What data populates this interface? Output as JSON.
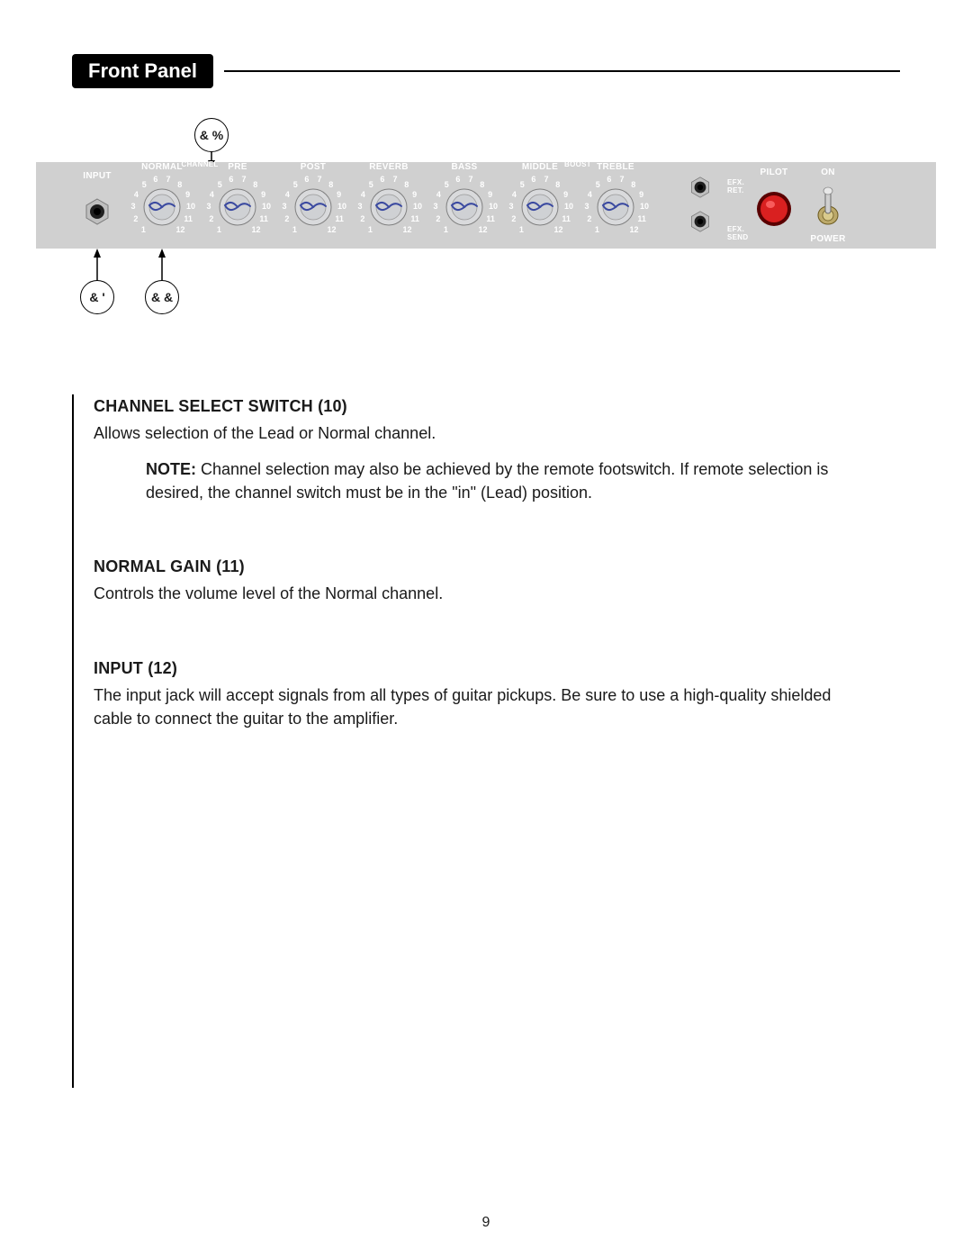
{
  "header": {
    "title": "Front Panel"
  },
  "page_number": "9",
  "callouts": {
    "c10": "& %",
    "c11": "& &",
    "c12": "& '"
  },
  "panel": {
    "input_label": "INPUT",
    "knobs": [
      {
        "label": "NORMAL"
      },
      {
        "label": "PRE"
      },
      {
        "label": "POST"
      },
      {
        "label": "REVERB"
      },
      {
        "label": "BASS"
      },
      {
        "label": "MIDDLE"
      },
      {
        "label": "TREBLE"
      }
    ],
    "channel_label": "CHANNEL",
    "boost_label": "BOOST",
    "efx_ret": "EFX.\nRET.",
    "efx_send": "EFX.\nSEND",
    "pilot": "PILOT",
    "on": "ON",
    "power": "POWER",
    "dial_numbers": [
      "1",
      "2",
      "3",
      "4",
      "5",
      "6",
      "7",
      "8",
      "9",
      "10",
      "11",
      "12"
    ],
    "colors": {
      "panel_bg": "#d0d0d0",
      "knob_body": "#d9dadc",
      "knob_line": "#3b4aa0",
      "pilot_red": "#d92020",
      "jack_metal": "#bfbfbf",
      "label_text": "#ffffff"
    }
  },
  "sections": [
    {
      "title": "CHANNEL SELECT SWITCH (10)",
      "text": "Allows selection of the Lead or Normal channel.",
      "note": "Channel selection may also be achieved by the remote footswitch. If remote selection is desired, the channel switch must be in the \"in\" (Lead) position."
    },
    {
      "title": "NORMAL GAIN (11)",
      "text": "Controls the volume level of the Normal channel."
    },
    {
      "title": "INPUT (12)",
      "text": "The input jack will accept signals from all types of guitar pickups. Be sure to use a high-quality shielded cable to connect the guitar to the amplifier."
    }
  ]
}
